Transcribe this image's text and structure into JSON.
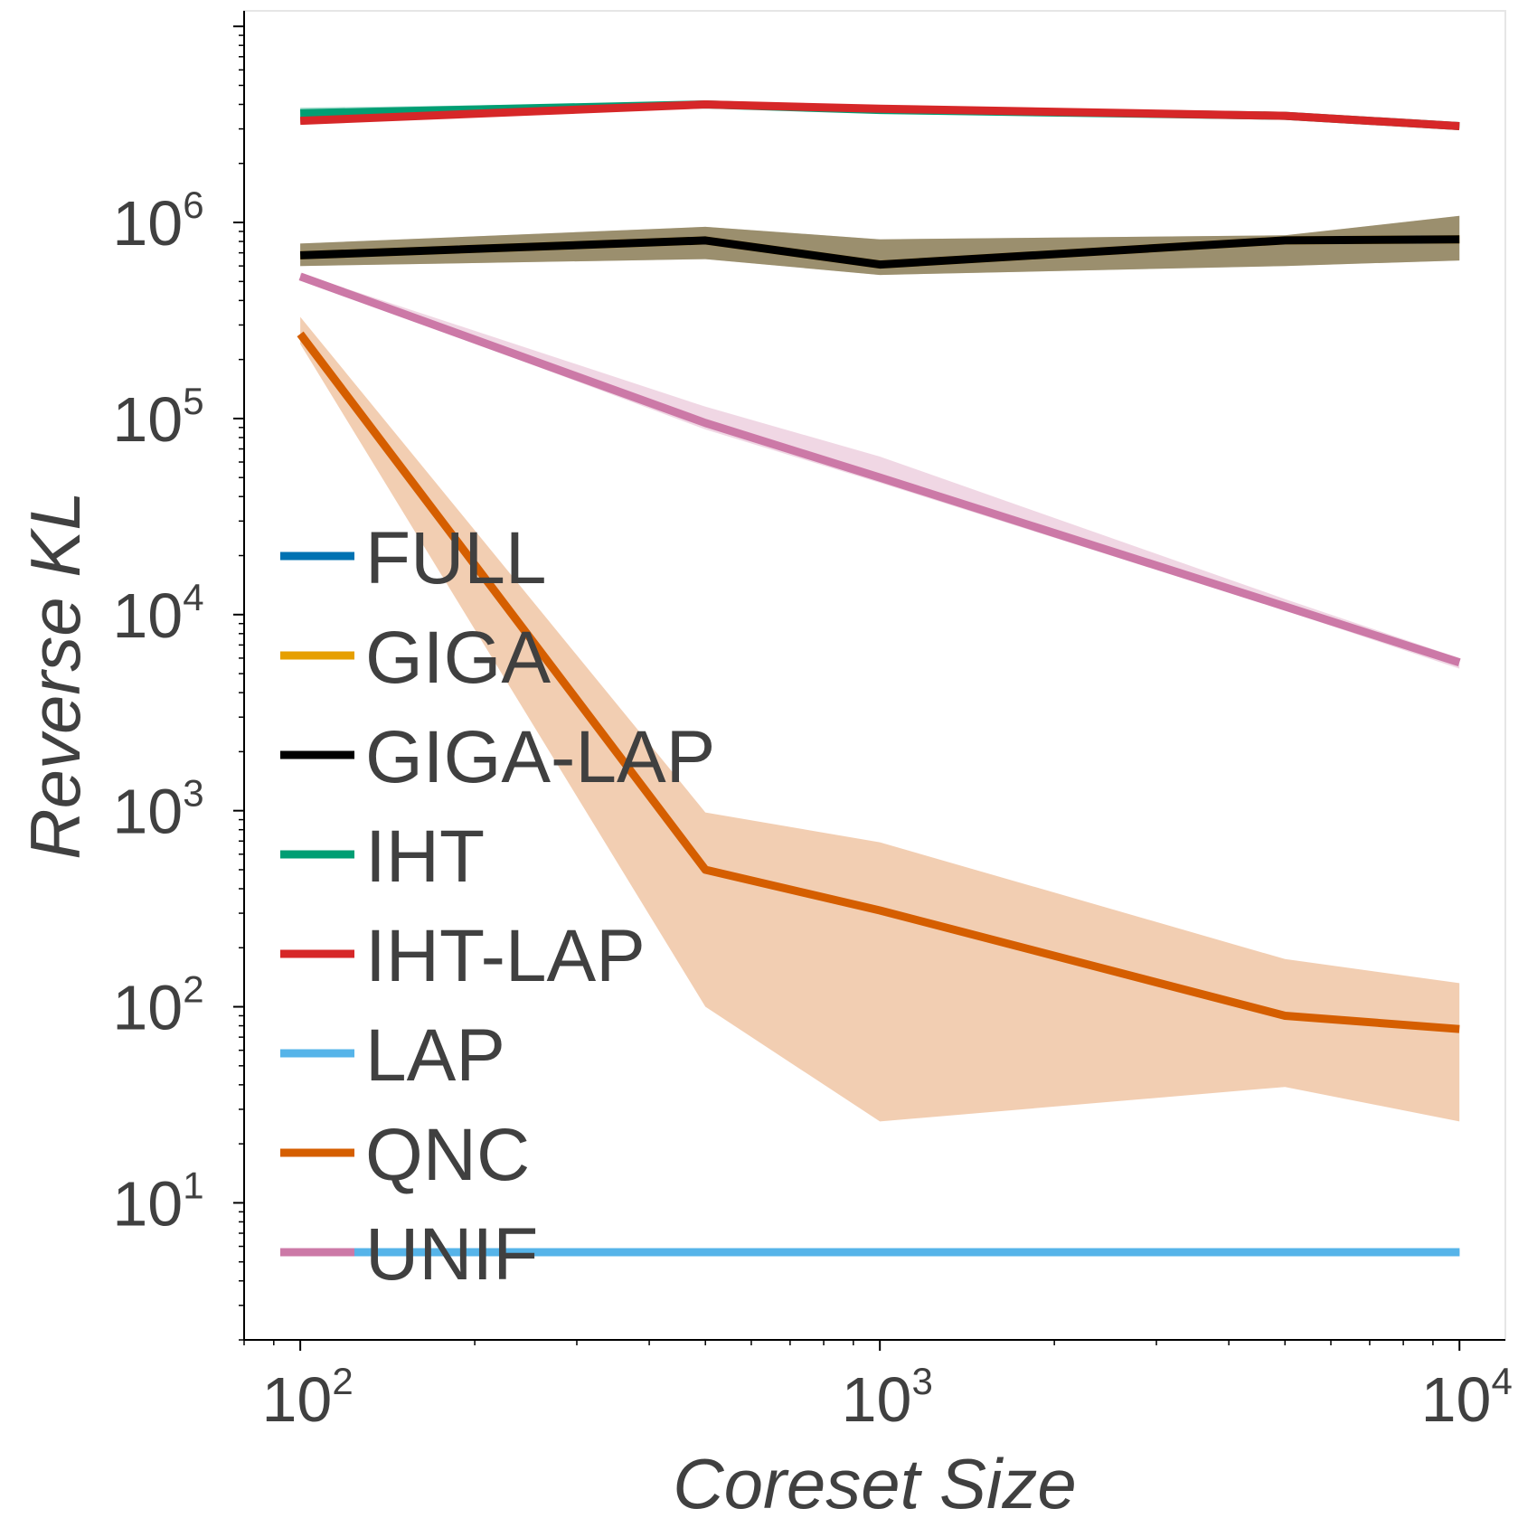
{
  "chart_data": {
    "type": "line",
    "xscale": "log",
    "yscale": "log",
    "xlabel": "Coreset Size",
    "ylabel": "Reverse KL",
    "xlim": [
      80,
      12000
    ],
    "ylim": [
      2.0,
      12000000
    ],
    "x_ticks": [
      {
        "value": 100,
        "base": "10",
        "exp": "2"
      },
      {
        "value": 1000,
        "base": "10",
        "exp": "3"
      },
      {
        "value": 10000,
        "base": "10",
        "exp": "4"
      }
    ],
    "y_ticks": [
      {
        "value": 10,
        "base": "10",
        "exp": "1"
      },
      {
        "value": 100,
        "base": "10",
        "exp": "2"
      },
      {
        "value": 1000,
        "base": "10",
        "exp": "3"
      },
      {
        "value": 10000,
        "base": "10",
        "exp": "4"
      },
      {
        "value": 100000,
        "base": "10",
        "exp": "5"
      },
      {
        "value": 1000000,
        "base": "10",
        "exp": "6"
      }
    ],
    "legend_position": "center-left",
    "series": [
      {
        "name": "FULL",
        "color": "#0072B2",
        "x": [
          100,
          10000
        ],
        "y": [
          5.6,
          5.6
        ],
        "lower": [
          5.5,
          5.5
        ],
        "upper": [
          5.7,
          5.7
        ]
      },
      {
        "name": "GIGA",
        "color": "#E69F00",
        "x": [
          100,
          500,
          1000,
          5000,
          10000
        ],
        "y": [
          680000,
          810000,
          610000,
          810000,
          820000
        ],
        "lower": [
          600000,
          650000,
          540000,
          600000,
          640000
        ],
        "upper": [
          780000,
          950000,
          820000,
          860000,
          1080000
        ]
      },
      {
        "name": "GIGA-LAP",
        "color": "#000000",
        "x": [
          100,
          500,
          1000,
          5000,
          10000
        ],
        "y": [
          680000,
          810000,
          610000,
          810000,
          820000
        ],
        "lower": [
          600000,
          650000,
          540000,
          600000,
          640000
        ],
        "upper": [
          780000,
          950000,
          820000,
          860000,
          1080000
        ]
      },
      {
        "name": "IHT",
        "color": "#009E73",
        "x": [
          100,
          500,
          1000,
          5000,
          10000
        ],
        "y": [
          3600000,
          4000000,
          3750000,
          3500000,
          3100000
        ],
        "lower": [
          3300000,
          3900000,
          3650000,
          3400000,
          3000000
        ],
        "upper": [
          3850000,
          4100000,
          3850000,
          3600000,
          3200000
        ]
      },
      {
        "name": "IHT-LAP",
        "color": "#D62728",
        "x": [
          100,
          500,
          1000,
          5000,
          10000
        ],
        "y": [
          3300000,
          4000000,
          3800000,
          3500000,
          3100000
        ],
        "lower": [
          3200000,
          3900000,
          3700000,
          3400000,
          3000000
        ],
        "upper": [
          3400000,
          4100000,
          3900000,
          3600000,
          3200000
        ]
      },
      {
        "name": "LAP",
        "color": "#56B4E9",
        "x": [
          100,
          10000
        ],
        "y": [
          5.6,
          5.6
        ],
        "lower": [
          5.4,
          5.4
        ],
        "upper": [
          5.8,
          5.8
        ]
      },
      {
        "name": "QNC",
        "color": "#D55E00",
        "x": [
          100,
          500,
          1000,
          5000,
          10000
        ],
        "y": [
          270000,
          500,
          310,
          90,
          77
        ],
        "lower": [
          240000,
          100,
          26,
          39,
          26
        ],
        "upper": [
          330000,
          980,
          690,
          175,
          132
        ]
      },
      {
        "name": "UNIF",
        "color": "#CC79A7",
        "x": [
          100,
          500,
          1000,
          5000,
          10000
        ],
        "y": [
          530000,
          95000,
          50000,
          11000,
          5700
        ],
        "lower": [
          520000,
          88000,
          47000,
          10500,
          5300
        ],
        "upper": [
          550000,
          115000,
          64000,
          12000,
          6000
        ]
      }
    ]
  }
}
